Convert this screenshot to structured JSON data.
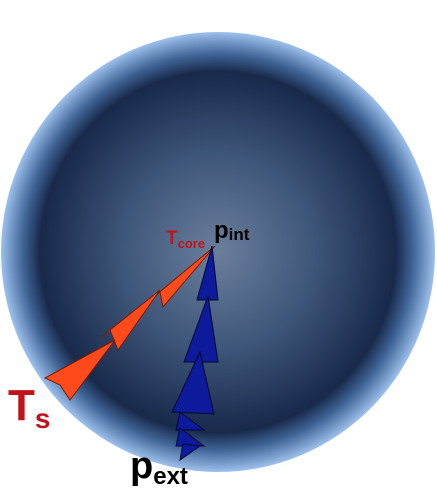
{
  "labels": {
    "t_core": {
      "main": "T",
      "sub": "core"
    },
    "p_int": {
      "main": "p",
      "sub": "int"
    },
    "t_s": {
      "main": "T",
      "sub": "s"
    },
    "p_ext": {
      "main": "p",
      "sub": "ext"
    }
  }
}
